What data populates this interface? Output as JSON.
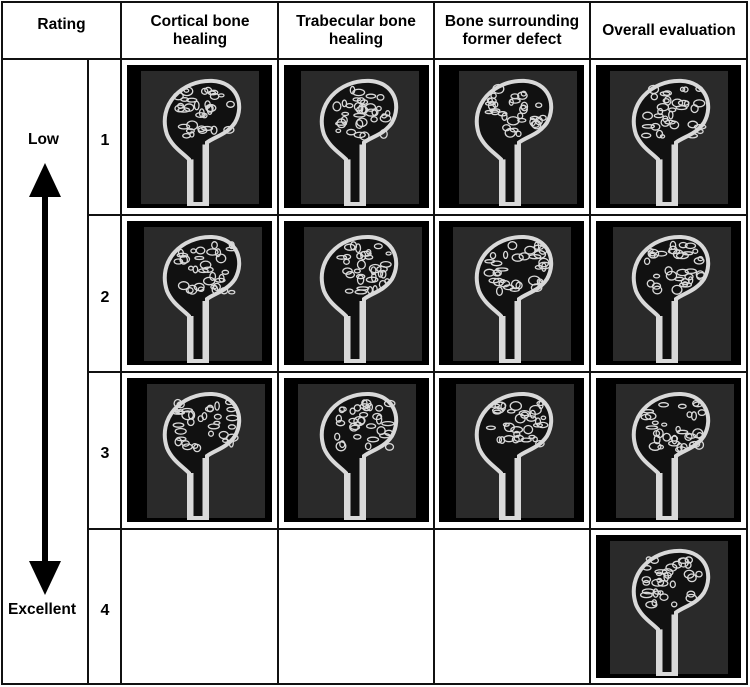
{
  "header": {
    "rating": "Rating",
    "columns": [
      "Cortical bone healing",
      "Trabecular bone healing",
      "Bone surrounding former defect",
      "Overall evaluation"
    ]
  },
  "scale": {
    "top_label": "Low",
    "bottom_label": "Excellent"
  },
  "rows": [
    {
      "rating": "1",
      "images": [
        "cortical-1",
        "trabecular-1",
        "surrounding-1",
        "overall-1"
      ]
    },
    {
      "rating": "2",
      "images": [
        "cortical-2",
        "trabecular-2",
        "surrounding-2",
        "overall-2"
      ]
    },
    {
      "rating": "3",
      "images": [
        "cortical-3",
        "trabecular-3",
        "surrounding-3",
        "overall-3"
      ]
    },
    {
      "rating": "4",
      "images": [
        "",
        "",
        "",
        "overall-4"
      ]
    }
  ],
  "colors": {
    "grid": "#111111",
    "image_bg": "#000000",
    "bone": "#d9d9d9",
    "tissue": "#2a2a2a"
  }
}
